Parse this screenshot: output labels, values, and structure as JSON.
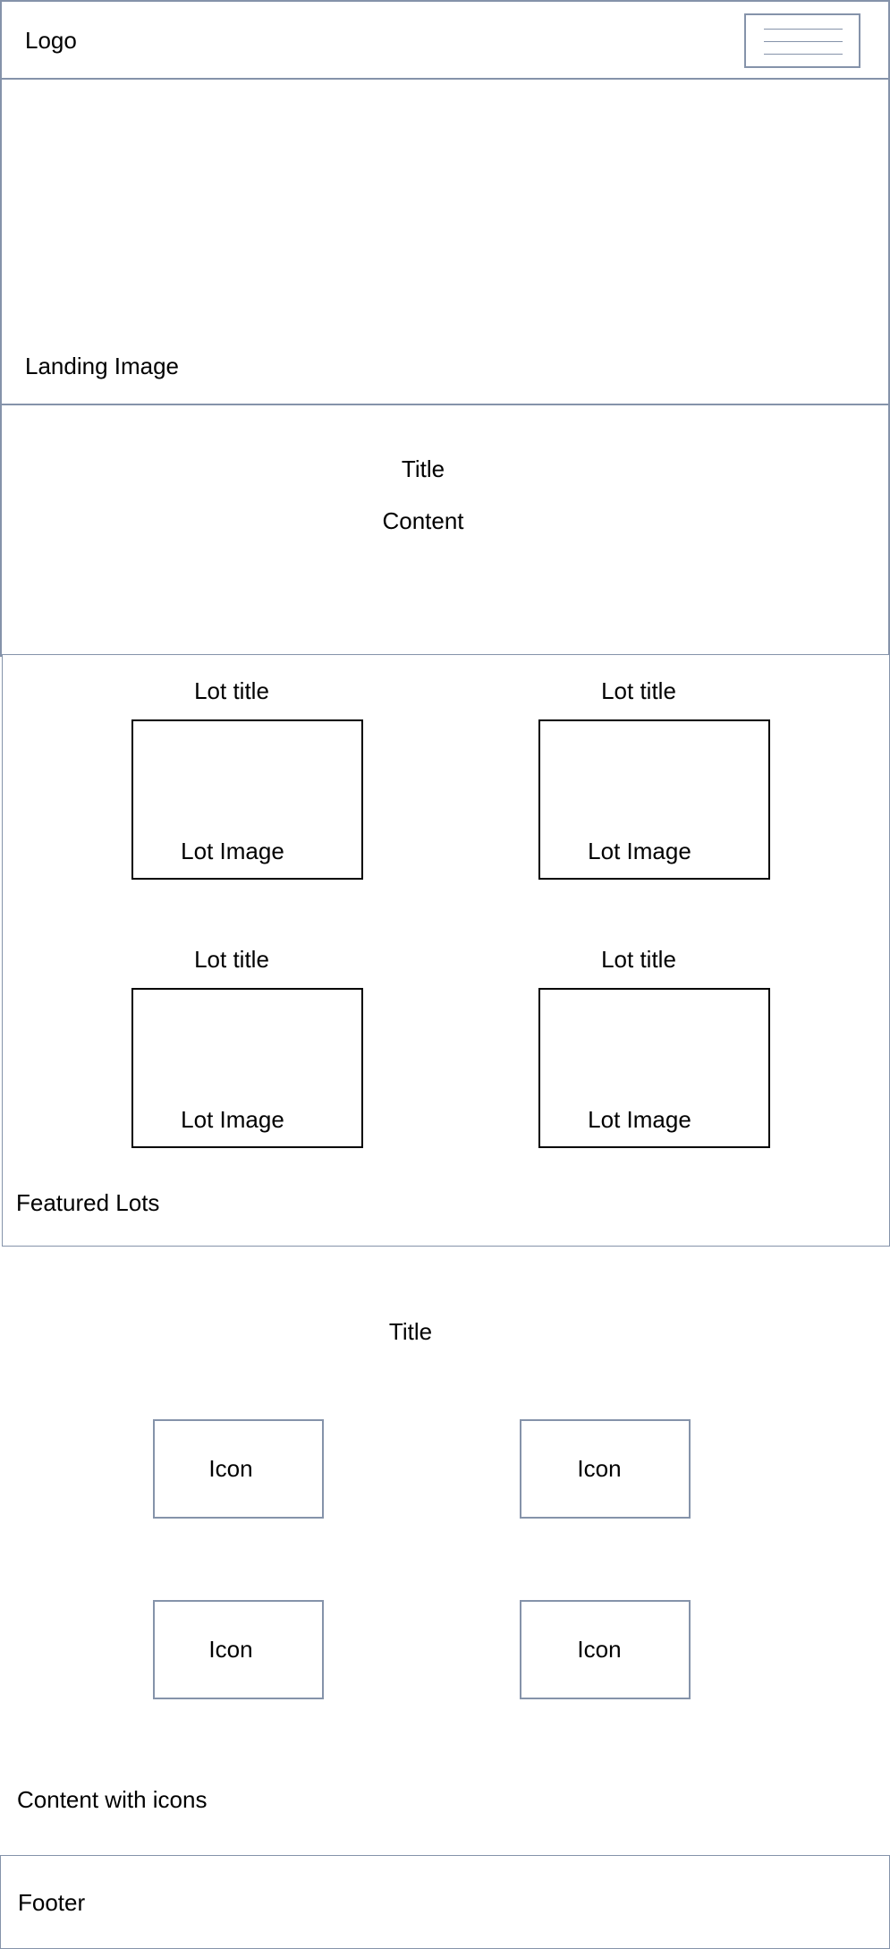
{
  "header": {
    "logo": "Logo",
    "menu_icon": "hamburger-menu-icon"
  },
  "hero": {
    "label": "Landing Image"
  },
  "intro": {
    "title": "Title",
    "content": "Content"
  },
  "featured": {
    "section_label": "Featured Lots",
    "lots": [
      {
        "title": "Lot title",
        "image_label": "Lot Image"
      },
      {
        "title": "Lot title",
        "image_label": "Lot Image"
      },
      {
        "title": "Lot title",
        "image_label": "Lot Image"
      },
      {
        "title": "Lot title",
        "image_label": "Lot Image"
      }
    ]
  },
  "icons_section": {
    "title": "Title",
    "icons": [
      {
        "label": "Icon"
      },
      {
        "label": "Icon"
      },
      {
        "label": "Icon"
      },
      {
        "label": "Icon"
      }
    ],
    "section_label": "Content with icons"
  },
  "footer": {
    "label": "Footer"
  },
  "colors": {
    "wireframe_border": "#8593aa",
    "lot_border": "#000000"
  }
}
